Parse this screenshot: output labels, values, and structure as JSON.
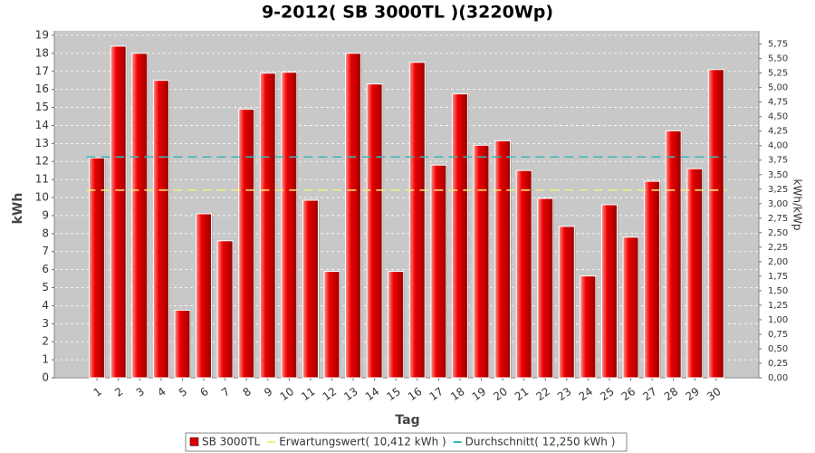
{
  "chart_data": {
    "type": "bar",
    "title": "9-2012( SB 3000TL )(3220Wp)",
    "x_label": "Tag",
    "y_label": "kWh",
    "y2_label": "kWh/kWp",
    "categories": [
      "1",
      "2",
      "3",
      "4",
      "5",
      "6",
      "7",
      "8",
      "9",
      "10",
      "11",
      "12",
      "13",
      "14",
      "15",
      "16",
      "17",
      "18",
      "19",
      "20",
      "21",
      "22",
      "23",
      "24",
      "25",
      "26",
      "27",
      "28",
      "29",
      "30"
    ],
    "series": [
      {
        "name": "SB 3000TL",
        "color": "#dd0000",
        "values": [
          12.2,
          18.4,
          18.0,
          16.5,
          3.75,
          9.1,
          7.6,
          14.9,
          16.9,
          16.95,
          9.85,
          5.9,
          18.0,
          16.3,
          5.9,
          17.5,
          11.8,
          15.75,
          12.9,
          13.15,
          11.5,
          9.95,
          8.4,
          5.65,
          9.6,
          7.8,
          10.9,
          13.7,
          11.6,
          17.1
        ]
      }
    ],
    "lines": [
      {
        "name": "Erwartungswert( 10,412 kWh )",
        "value": 10.412,
        "color": "#f0f080"
      },
      {
        "name": "Durchschnitt( 12,250 kWh )",
        "value": 12.25,
        "color": "#33bbbb"
      }
    ],
    "ylim": [
      0,
      19.25
    ],
    "yticks": [
      0,
      1,
      2,
      3,
      4,
      5,
      6,
      7,
      8,
      9,
      10,
      11,
      12,
      13,
      14,
      15,
      16,
      17,
      18,
      19
    ],
    "y2lim": [
      0,
      5.978
    ],
    "y2ticks": [
      {
        "value": 0,
        "label": "0,00"
      },
      {
        "value": 0.25,
        "label": "0,25"
      },
      {
        "value": 0.5,
        "label": "0,50"
      },
      {
        "value": 0.75,
        "label": "0,75"
      },
      {
        "value": 1,
        "label": "1,00"
      },
      {
        "value": 1.25,
        "label": "1,25"
      },
      {
        "value": 1.5,
        "label": "1,50"
      },
      {
        "value": 1.75,
        "label": "1,75"
      },
      {
        "value": 2,
        "label": "2,00"
      },
      {
        "value": 2.25,
        "label": "2,25"
      },
      {
        "value": 2.5,
        "label": "2,50"
      },
      {
        "value": 2.75,
        "label": "2,75"
      },
      {
        "value": 3,
        "label": "3,00"
      },
      {
        "value": 3.25,
        "label": "3,25"
      },
      {
        "value": 3.5,
        "label": "3,50"
      },
      {
        "value": 3.75,
        "label": "3,75"
      },
      {
        "value": 4,
        "label": "4,00"
      },
      {
        "value": 4.25,
        "label": "4,25"
      },
      {
        "value": 4.5,
        "label": "4,50"
      },
      {
        "value": 4.75,
        "label": "4,75"
      },
      {
        "value": 5,
        "label": "5,00"
      },
      {
        "value": 5.25,
        "label": "5,25"
      },
      {
        "value": 5.5,
        "label": "5,50"
      },
      {
        "value": 5.75,
        "label": "5,75"
      }
    ],
    "grid": true
  }
}
